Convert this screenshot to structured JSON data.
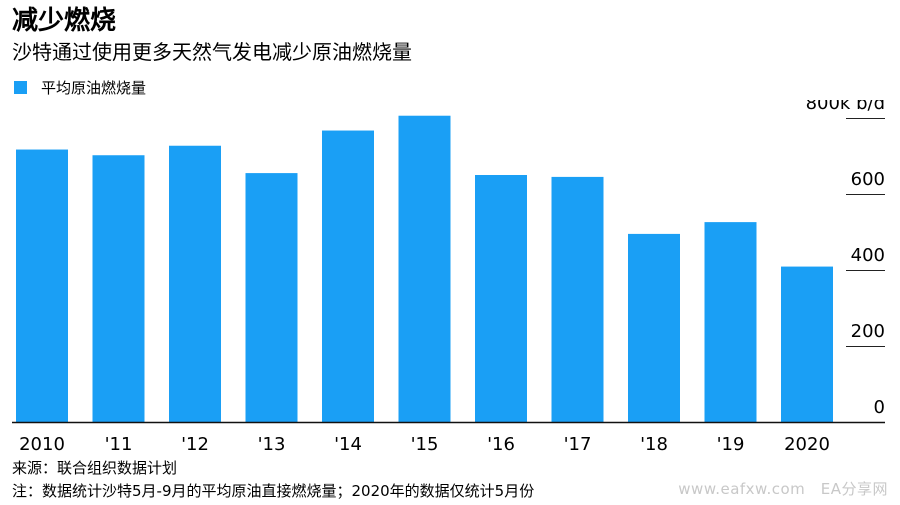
{
  "header": {
    "title": "减少燃烧",
    "subtitle": "沙特通过使用更多天然气发电减少原油燃烧量"
  },
  "legend": {
    "label": "平均原油燃烧量",
    "color": "#1a9ff5"
  },
  "chart_data": {
    "type": "bar",
    "categories": [
      "2010",
      "'11",
      "'12",
      "'13",
      "'14",
      "'15",
      "'16",
      "'17",
      "'18",
      "'19",
      "2020"
    ],
    "series": [
      {
        "name": "平均原油燃烧量",
        "values": [
          717,
          702,
          727,
          655,
          767,
          806,
          650,
          645,
          495,
          526,
          409
        ],
        "color": "#1a9ff5"
      }
    ],
    "ylim": [
      0,
      800
    ],
    "yticks": [
      0,
      200,
      400,
      600,
      800
    ],
    "ytick_labels": [
      "0",
      "200",
      "400",
      "600",
      "800k b/d"
    ],
    "axis_position": "right",
    "grid": false
  },
  "footer": {
    "source": "来源：联合组织数据计划",
    "note": "注：数据统计沙特5月-9月的平均原油直接燃烧量；2020年的数据仅统计5月份"
  },
  "watermark": "www.eafxw.com　EA分享网"
}
